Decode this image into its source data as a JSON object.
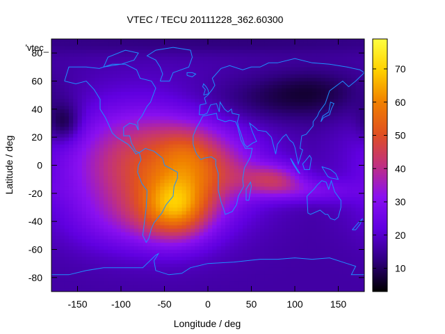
{
  "chart_data": {
    "type": "heatmap",
    "title": "VTEC / TECU 20111228_362.60300",
    "key_label": "'vtec_",
    "xlabel": "Longitude / deg",
    "ylabel": "Latitude / deg",
    "xlim": [
      -180,
      180
    ],
    "ylim": [
      -90,
      90
    ],
    "x_ticks": [
      -150,
      -100,
      -50,
      0,
      50,
      100,
      150
    ],
    "x_tick_labels": [
      "-150",
      "-100",
      "-50",
      "0",
      "50",
      "100",
      "150"
    ],
    "y_ticks": [
      -80,
      -60,
      -40,
      -20,
      0,
      20,
      40,
      60,
      80
    ],
    "y_tick_labels": [
      "-80",
      "-60",
      "-40",
      "-20",
      "0",
      "20",
      "40",
      "60",
      "80"
    ],
    "colorbar": {
      "range": [
        3,
        79
      ],
      "ticks": [
        10,
        20,
        30,
        40,
        50,
        60,
        70
      ],
      "tick_labels": [
        "10",
        "20",
        "30",
        "40",
        "50",
        "60",
        "70"
      ],
      "colormap": [
        "#000000",
        "#300080",
        "#6000e0",
        "#8a10f0",
        "#c03080",
        "#e05020",
        "#f08000",
        "#ffd000",
        "#ffff40"
      ]
    },
    "overlay": "coastlines",
    "overlay_color": "#1e90ff",
    "grid": false,
    "field": {
      "background": 16,
      "blobs": [
        {
          "lon": -60,
          "lat": 0,
          "slon": 70,
          "slat": 30,
          "amp": 34
        },
        {
          "lon": -35,
          "lat": -30,
          "slon": 28,
          "slat": 16,
          "amp": 28
        },
        {
          "lon": -25,
          "lat": 10,
          "slon": 22,
          "slat": 12,
          "amp": 8
        },
        {
          "lon": 10,
          "lat": -5,
          "slon": 30,
          "slat": 14,
          "amp": 10
        },
        {
          "lon": 75,
          "lat": -10,
          "slon": 25,
          "slat": 8,
          "amp": 20
        },
        {
          "lon": 120,
          "lat": -18,
          "slon": 35,
          "slat": 6,
          "amp": 10
        },
        {
          "lon": -80,
          "lat": -40,
          "slon": 50,
          "slat": 15,
          "amp": 8
        },
        {
          "lon": -165,
          "lat": 30,
          "slon": 14,
          "slat": 10,
          "amp": -12
        },
        {
          "lon": 60,
          "lat": 45,
          "slon": 80,
          "slat": 12,
          "amp": -7
        },
        {
          "lon": 120,
          "lat": 55,
          "slon": 40,
          "slat": 10,
          "amp": -5
        },
        {
          "lon": 0,
          "lat": 88,
          "slon": 200,
          "slat": 6,
          "amp": -4
        }
      ]
    }
  }
}
